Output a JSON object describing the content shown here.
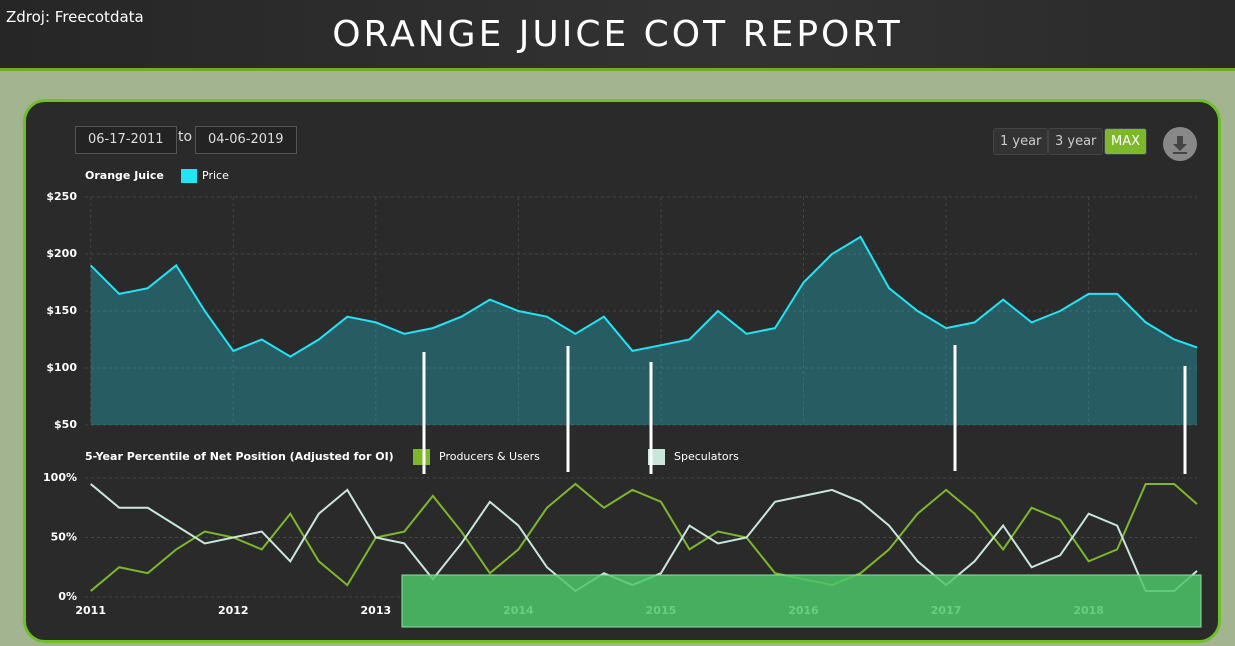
{
  "header": {
    "source": "Zdroj: Freecotdata",
    "title": "ORANGE JUICE COT REPORT"
  },
  "controls": {
    "from": "06-17-2011",
    "to_word": "to",
    "to": "04-06-2019",
    "buttons": [
      "1 year",
      "3 year",
      "MAX"
    ]
  },
  "chart_data": [
    {
      "type": "area",
      "label": "Orange Juice",
      "x": [
        2011.5,
        2011.7,
        2011.9,
        2012.1,
        2012.3,
        2012.5,
        2012.7,
        2012.9,
        2013.1,
        2013.3,
        2013.5,
        2013.7,
        2013.9,
        2014.1,
        2014.3,
        2014.5,
        2014.7,
        2014.9,
        2015.1,
        2015.3,
        2015.5,
        2015.7,
        2015.9,
        2016.1,
        2016.3,
        2016.5,
        2016.7,
        2016.9,
        2017.1,
        2017.3,
        2017.5,
        2017.7,
        2017.9,
        2018.1,
        2018.3,
        2018.5,
        2018.7,
        2018.9,
        2019.1,
        2019.26
      ],
      "series": [
        {
          "name": "Price",
          "color": "#22e4f5",
          "values": [
            190,
            165,
            170,
            190,
            150,
            115,
            125,
            110,
            125,
            145,
            140,
            130,
            135,
            145,
            160,
            150,
            145,
            130,
            145,
            115,
            120,
            125,
            150,
            130,
            135,
            175,
            200,
            215,
            170,
            150,
            135,
            140,
            160,
            140,
            150,
            165,
            165,
            140,
            125,
            118
          ]
        }
      ],
      "xlim": [
        2011.46,
        2019.26
      ],
      "xticks": [
        {
          "value": 2011.5,
          "label": "2011"
        },
        {
          "value": 2012.5,
          "label": "2012"
        },
        {
          "value": 2013.5,
          "label": "2013"
        },
        {
          "value": 2014.5,
          "label": "2014"
        },
        {
          "value": 2015.5,
          "label": "2015"
        },
        {
          "value": 2016.5,
          "label": "2016"
        },
        {
          "value": 2017.5,
          "label": "2017"
        },
        {
          "value": 2018.5,
          "label": "2018"
        }
      ],
      "ylim": [
        50,
        250
      ],
      "yticks": [
        {
          "value": 50,
          "label": "$50"
        },
        {
          "value": 100,
          "label": "$100"
        },
        {
          "value": 150,
          "label": "$150"
        },
        {
          "value": 200,
          "label": "$200"
        },
        {
          "value": 250,
          "label": "$250"
        }
      ],
      "grid": true
    },
    {
      "type": "line",
      "title": "5-Year Percentile of Net Position (Adjusted for OI)",
      "x": [
        2011.5,
        2011.7,
        2011.9,
        2012.1,
        2012.3,
        2012.5,
        2012.7,
        2012.9,
        2013.1,
        2013.3,
        2013.5,
        2013.7,
        2013.9,
        2014.1,
        2014.3,
        2014.5,
        2014.7,
        2014.9,
        2015.1,
        2015.3,
        2015.5,
        2015.7,
        2015.9,
        2016.1,
        2016.3,
        2016.5,
        2016.7,
        2016.9,
        2017.1,
        2017.3,
        2017.5,
        2017.7,
        2017.9,
        2018.1,
        2018.3,
        2018.5,
        2018.7,
        2018.9,
        2019.1,
        2019.26
      ],
      "series": [
        {
          "name": "Producers & Users",
          "color": "#7cb82a",
          "values": [
            5,
            25,
            20,
            40,
            55,
            50,
            40,
            70,
            30,
            10,
            50,
            55,
            85,
            55,
            20,
            40,
            75,
            95,
            75,
            90,
            80,
            40,
            55,
            50,
            20,
            15,
            10,
            20,
            40,
            70,
            90,
            70,
            40,
            75,
            65,
            30,
            40,
            95,
            95,
            78
          ]
        },
        {
          "name": "Speculators",
          "color": "#c8e6d9",
          "values": [
            95,
            75,
            75,
            60,
            45,
            50,
            55,
            30,
            70,
            90,
            50,
            45,
            15,
            45,
            80,
            60,
            25,
            5,
            20,
            10,
            20,
            60,
            45,
            50,
            80,
            85,
            90,
            80,
            60,
            30,
            10,
            30,
            60,
            25,
            35,
            70,
            60,
            5,
            5,
            22
          ]
        }
      ],
      "xlim": [
        2011.46,
        2019.26
      ],
      "xticks": [
        {
          "value": 2011.5,
          "label": "2011"
        },
        {
          "value": 2012.5,
          "label": "2012"
        },
        {
          "value": 2013.5,
          "label": "2013"
        },
        {
          "value": 2014.5,
          "label": "2014"
        },
        {
          "value": 2015.5,
          "label": "2015"
        },
        {
          "value": 2016.5,
          "label": "2016"
        },
        {
          "value": 2017.5,
          "label": "2017"
        },
        {
          "value": 2018.5,
          "label": "2018"
        }
      ],
      "ylim": [
        0,
        100
      ],
      "yticks": [
        {
          "value": 0,
          "label": "0%"
        },
        {
          "value": 50,
          "label": "50%"
        },
        {
          "value": 100,
          "label": "100%"
        }
      ],
      "grid": true
    }
  ]
}
